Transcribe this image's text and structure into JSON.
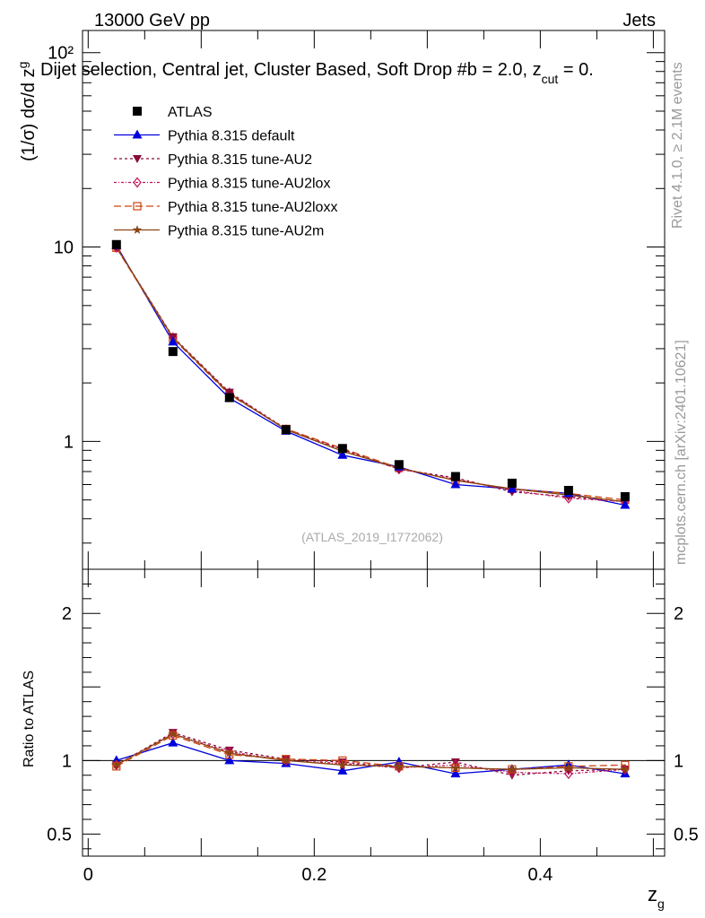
{
  "header": {
    "left": "13000 GeV pp",
    "right": "Jets",
    "subtitle": "Dijet selection, Central jet, Cluster Based, Soft Drop #b = 2.0, z",
    "subtitle_sub": "cut",
    "subtitle_tail": " = 0."
  },
  "side": {
    "rivet": "Rivet 4.1.0, ≥ 2.1M events",
    "mcplots": "mcplots.cern.ch [arXiv:2401.10621]"
  },
  "watermark": "(ATLAS_2019_I1772062)",
  "main_ylabel": "(1/σ) dσ/d z",
  "main_ylabel_sub": "g",
  "ratio_ylabel": "Ratio to ATLAS",
  "xlabel": "z",
  "xlabel_sub": "g",
  "colors": {
    "data": "#000000",
    "default": "#0000dd",
    "au2": "#8b0a3a",
    "au2lox": "#c0105a",
    "au2loxx": "#cc4411",
    "au2m": "#8b4513"
  },
  "chart_data": {
    "type": "line",
    "x": [
      0.025,
      0.075,
      0.125,
      0.175,
      0.225,
      0.275,
      0.325,
      0.375,
      0.425,
      0.475
    ],
    "xlim": [
      -0.005,
      0.51
    ],
    "xticks": [
      "0",
      "0.2",
      "0.4"
    ],
    "xtick_values": [
      0,
      0.2,
      0.4
    ],
    "main_ylim": [
      0.22,
      130
    ],
    "main_ytick_labels": [
      "1",
      "10",
      "10²"
    ],
    "main_ytick_values": [
      1,
      10,
      100
    ],
    "ratio_ylim": [
      0.35,
      2.3
    ],
    "ratio_ytick_labels": [
      "0.5",
      "1",
      "2"
    ],
    "ratio_ytick_values": [
      0.5,
      1,
      2
    ],
    "series": [
      {
        "key": "data",
        "name": "ATLAS",
        "marker": "square",
        "dash": "none",
        "values": [
          10.3,
          2.9,
          1.68,
          1.15,
          0.92,
          0.76,
          0.66,
          0.61,
          0.56,
          0.52
        ]
      },
      {
        "key": "default",
        "name": "Pythia 8.315 default",
        "marker": "triangle",
        "dash": "solid",
        "values": [
          10.2,
          3.25,
          1.67,
          1.13,
          0.85,
          0.74,
          0.6,
          0.57,
          0.54,
          0.47
        ]
      },
      {
        "key": "au2",
        "name": "Pythia 8.315 tune-AU2",
        "marker": "triangle-down",
        "dash": "3,3",
        "values": [
          10.0,
          3.45,
          1.79,
          1.16,
          0.91,
          0.72,
          0.65,
          0.55,
          0.52,
          0.49
        ]
      },
      {
        "key": "au2lox",
        "name": "Pythia 8.315 tune-AU2lox",
        "marker": "diamond",
        "dash": "3,2,1,2",
        "values": [
          9.95,
          3.42,
          1.78,
          1.15,
          0.9,
          0.72,
          0.64,
          0.56,
          0.51,
          0.49
        ]
      },
      {
        "key": "au2loxx",
        "name": "Pythia 8.315 tune-AU2loxx",
        "marker": "open-square",
        "dash": "8,4",
        "values": [
          9.9,
          3.38,
          1.74,
          1.16,
          0.92,
          0.73,
          0.63,
          0.57,
          0.54,
          0.5
        ]
      },
      {
        "key": "au2m",
        "name": "Pythia 8.315 tune-AU2m",
        "marker": "star",
        "dash": "solid",
        "values": [
          10.0,
          3.42,
          1.76,
          1.15,
          0.89,
          0.73,
          0.63,
          0.57,
          0.53,
          0.49
        ]
      }
    ],
    "ratio_series": [
      {
        "key": "default",
        "values": [
          1.0,
          1.12,
          1.0,
          0.98,
          0.93,
          0.99,
          0.91,
          0.94,
          0.97,
          0.91
        ]
      },
      {
        "key": "au2",
        "values": [
          0.97,
          1.19,
          1.07,
          1.01,
          0.99,
          0.95,
          0.99,
          0.9,
          0.93,
          0.94
        ]
      },
      {
        "key": "au2lox",
        "values": [
          0.97,
          1.18,
          1.06,
          1.0,
          0.98,
          0.95,
          0.97,
          0.92,
          0.91,
          0.94
        ]
      },
      {
        "key": "au2loxx",
        "values": [
          0.96,
          1.17,
          1.04,
          1.01,
          1.0,
          0.96,
          0.95,
          0.94,
          0.96,
          0.97
        ]
      },
      {
        "key": "au2m",
        "values": [
          0.97,
          1.18,
          1.05,
          1.0,
          0.97,
          0.96,
          0.95,
          0.94,
          0.95,
          0.94
        ]
      }
    ]
  }
}
